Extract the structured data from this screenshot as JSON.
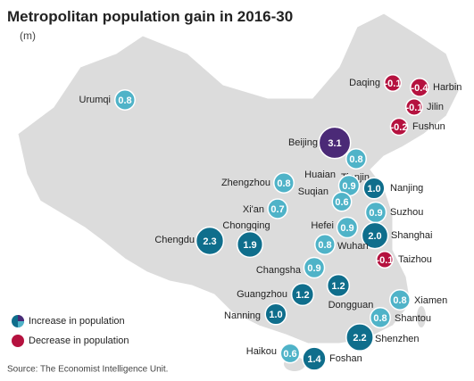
{
  "header": {
    "title": "Metropolitan population gain in 2016-30",
    "subtitle": "(m)"
  },
  "cities": [
    {
      "name": "Urumqi",
      "value": 0.8,
      "color": "#4fb3c8"
    },
    {
      "name": "Daqing",
      "value": -0.1,
      "color": "#b5123f"
    },
    {
      "name": "Harbin",
      "value": -0.4,
      "color": "#b5123f"
    },
    {
      "name": "Jilin",
      "value": -0.1,
      "color": "#b5123f"
    },
    {
      "name": "Fushun",
      "value": -0.2,
      "color": "#b5123f"
    },
    {
      "name": "Beijing",
      "value": 3.1,
      "color": "#4b2a77"
    },
    {
      "name": "Tianjin",
      "value": 0.8,
      "color": "#4fb3c8"
    },
    {
      "name": "Huaian",
      "value": 0.9,
      "color": "#4fb3c8"
    },
    {
      "name": "Zhengzhou",
      "value": 0.8,
      "color": "#4fb3c8"
    },
    {
      "name": "Suqian",
      "value": 0.6,
      "color": "#4fb3c8"
    },
    {
      "name": "Nanjing",
      "value": 1.0,
      "label": "1.0",
      "color": "#0f6e8c"
    },
    {
      "name": "Xi'an",
      "value": 0.7,
      "color": "#4fb3c8"
    },
    {
      "name": "Hefei",
      "value": 0.9,
      "color": "#4fb3c8"
    },
    {
      "name": "Suzhou",
      "value": 0.9,
      "color": "#4fb3c8"
    },
    {
      "name": "Shanghai",
      "value": 2.0,
      "label": "2.0",
      "color": "#0f6e8c"
    },
    {
      "name": "Wuhan",
      "value": 0.8,
      "color": "#4fb3c8"
    },
    {
      "name": "Chongqing",
      "value": 1.9,
      "color": "#0f6e8c"
    },
    {
      "name": "Chengdu",
      "value": 2.3,
      "color": "#0f6e8c"
    },
    {
      "name": "Taizhou",
      "value": -0.1,
      "color": "#b5123f"
    },
    {
      "name": "Changsha",
      "value": 0.9,
      "color": "#4fb3c8"
    },
    {
      "name": "Dongguan",
      "value": 1.2,
      "color": "#0f6e8c"
    },
    {
      "name": "Guangzhou",
      "value": 1.2,
      "color": "#0f6e8c"
    },
    {
      "name": "Xiamen",
      "value": 0.8,
      "color": "#4fb3c8"
    },
    {
      "name": "Nanning",
      "value": 1.0,
      "label": "1.0",
      "color": "#0f6e8c"
    },
    {
      "name": "Shantou",
      "value": 0.8,
      "color": "#4fb3c8"
    },
    {
      "name": "Shenzhen",
      "value": 2.2,
      "color": "#0f6e8c"
    },
    {
      "name": "Haikou",
      "value": 0.6,
      "color": "#4fb3c8"
    },
    {
      "name": "Foshan",
      "value": 1.4,
      "color": "#0f6e8c"
    }
  ],
  "legend": [
    {
      "label": "Increase in population"
    },
    {
      "label": "Decrease in population"
    }
  ],
  "source": "Source: The Economist Intelligence Unit."
}
